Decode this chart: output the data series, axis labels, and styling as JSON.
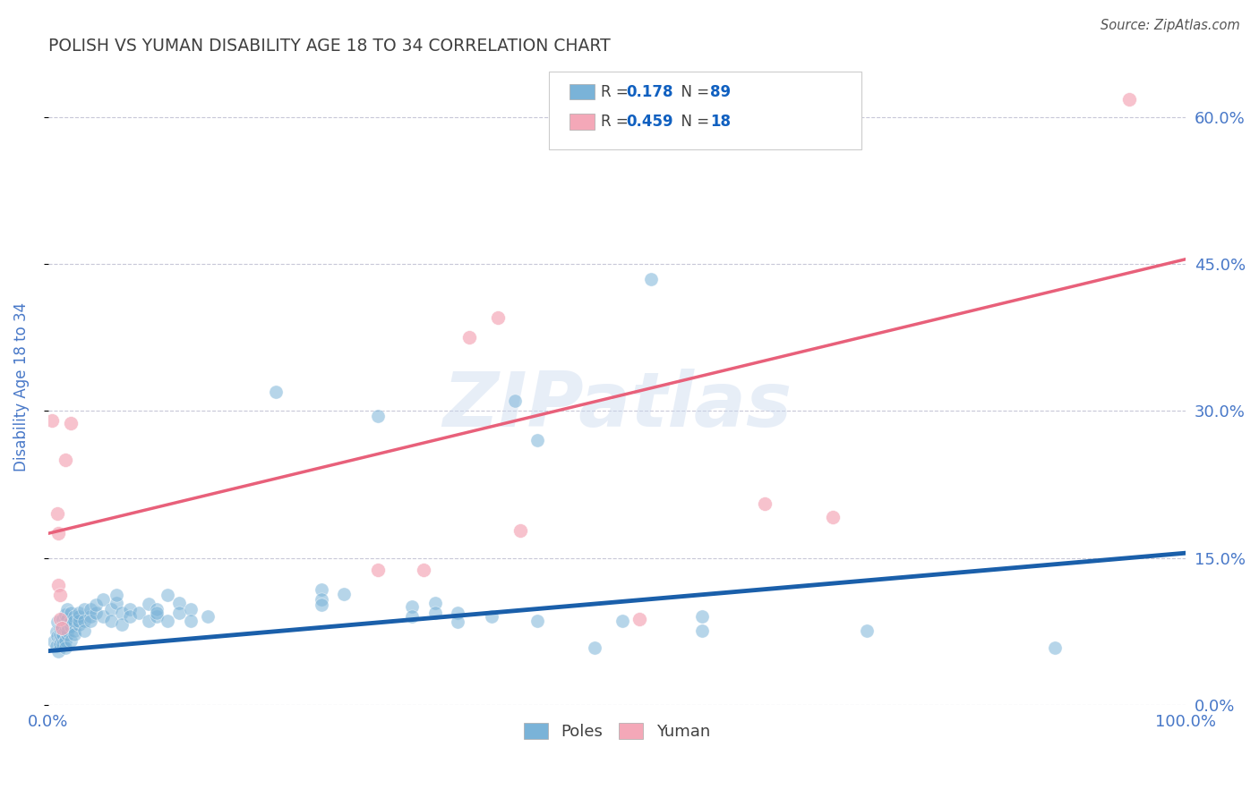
{
  "title": "POLISH VS YUMAN DISABILITY AGE 18 TO 34 CORRELATION CHART",
  "source": "Source: ZipAtlas.com",
  "ylabel": "Disability Age 18 to 34",
  "xlim": [
    0.0,
    1.0
  ],
  "ylim": [
    0.0,
    0.65
  ],
  "yticks": [
    0.0,
    0.15,
    0.3,
    0.45,
    0.6
  ],
  "ytick_labels": [
    "0.0%",
    "15.0%",
    "30.0%",
    "45.0%",
    "60.0%"
  ],
  "xtick_labels": [
    "0.0%",
    "100.0%"
  ],
  "blue_line": {
    "x": [
      0.0,
      1.0
    ],
    "y": [
      0.055,
      0.155
    ]
  },
  "pink_line": {
    "x": [
      0.0,
      1.0
    ],
    "y": [
      0.175,
      0.455
    ]
  },
  "blue_scatter": [
    [
      0.005,
      0.065
    ],
    [
      0.007,
      0.06
    ],
    [
      0.007,
      0.075
    ],
    [
      0.008,
      0.07
    ],
    [
      0.008,
      0.085
    ],
    [
      0.009,
      0.055
    ],
    [
      0.01,
      0.068
    ],
    [
      0.01,
      0.072
    ],
    [
      0.01,
      0.062
    ],
    [
      0.01,
      0.078
    ],
    [
      0.012,
      0.08
    ],
    [
      0.012,
      0.068
    ],
    [
      0.013,
      0.072
    ],
    [
      0.013,
      0.062
    ],
    [
      0.013,
      0.088
    ],
    [
      0.015,
      0.076
    ],
    [
      0.015,
      0.086
    ],
    [
      0.015,
      0.066
    ],
    [
      0.015,
      0.058
    ],
    [
      0.015,
      0.092
    ],
    [
      0.017,
      0.072
    ],
    [
      0.017,
      0.082
    ],
    [
      0.017,
      0.088
    ],
    [
      0.017,
      0.098
    ],
    [
      0.017,
      0.076
    ],
    [
      0.02,
      0.08
    ],
    [
      0.02,
      0.086
    ],
    [
      0.02,
      0.094
    ],
    [
      0.02,
      0.066
    ],
    [
      0.023,
      0.09
    ],
    [
      0.023,
      0.076
    ],
    [
      0.023,
      0.086
    ],
    [
      0.023,
      0.072
    ],
    [
      0.027,
      0.082
    ],
    [
      0.027,
      0.09
    ],
    [
      0.027,
      0.086
    ],
    [
      0.027,
      0.094
    ],
    [
      0.032,
      0.098
    ],
    [
      0.032,
      0.086
    ],
    [
      0.032,
      0.076
    ],
    [
      0.037,
      0.09
    ],
    [
      0.037,
      0.098
    ],
    [
      0.037,
      0.086
    ],
    [
      0.042,
      0.094
    ],
    [
      0.042,
      0.102
    ],
    [
      0.048,
      0.108
    ],
    [
      0.048,
      0.09
    ],
    [
      0.055,
      0.098
    ],
    [
      0.055,
      0.086
    ],
    [
      0.06,
      0.104
    ],
    [
      0.06,
      0.112
    ],
    [
      0.065,
      0.094
    ],
    [
      0.065,
      0.082
    ],
    [
      0.072,
      0.098
    ],
    [
      0.072,
      0.09
    ],
    [
      0.08,
      0.094
    ],
    [
      0.088,
      0.103
    ],
    [
      0.088,
      0.086
    ],
    [
      0.095,
      0.09
    ],
    [
      0.095,
      0.098
    ],
    [
      0.095,
      0.094
    ],
    [
      0.105,
      0.112
    ],
    [
      0.105,
      0.086
    ],
    [
      0.115,
      0.104
    ],
    [
      0.115,
      0.094
    ],
    [
      0.125,
      0.098
    ],
    [
      0.125,
      0.086
    ],
    [
      0.14,
      0.09
    ],
    [
      0.2,
      0.32
    ],
    [
      0.24,
      0.118
    ],
    [
      0.24,
      0.108
    ],
    [
      0.24,
      0.102
    ],
    [
      0.26,
      0.113
    ],
    [
      0.29,
      0.295
    ],
    [
      0.32,
      0.1
    ],
    [
      0.32,
      0.09
    ],
    [
      0.34,
      0.104
    ],
    [
      0.34,
      0.094
    ],
    [
      0.36,
      0.094
    ],
    [
      0.36,
      0.085
    ],
    [
      0.39,
      0.09
    ],
    [
      0.41,
      0.31
    ],
    [
      0.43,
      0.27
    ],
    [
      0.43,
      0.086
    ],
    [
      0.48,
      0.058
    ],
    [
      0.505,
      0.086
    ],
    [
      0.53,
      0.435
    ],
    [
      0.575,
      0.09
    ],
    [
      0.575,
      0.076
    ],
    [
      0.72,
      0.076
    ],
    [
      0.885,
      0.058
    ]
  ],
  "pink_scatter": [
    [
      0.003,
      0.29
    ],
    [
      0.008,
      0.195
    ],
    [
      0.009,
      0.175
    ],
    [
      0.009,
      0.122
    ],
    [
      0.01,
      0.112
    ],
    [
      0.01,
      0.088
    ],
    [
      0.012,
      0.078
    ],
    [
      0.015,
      0.25
    ],
    [
      0.02,
      0.288
    ],
    [
      0.29,
      0.138
    ],
    [
      0.33,
      0.138
    ],
    [
      0.37,
      0.375
    ],
    [
      0.395,
      0.395
    ],
    [
      0.415,
      0.178
    ],
    [
      0.52,
      0.088
    ],
    [
      0.63,
      0.205
    ],
    [
      0.69,
      0.192
    ],
    [
      0.95,
      0.618
    ]
  ],
  "watermark": "ZIPatlas",
  "background_color": "#ffffff",
  "blue_color": "#7ab3d8",
  "pink_color": "#f4a8b8",
  "blue_line_color": "#1a5faa",
  "pink_line_color": "#e8607a",
  "grid_color": "#c8c8d8",
  "title_color": "#404040",
  "axis_label_color": "#4878c8",
  "tick_color": "#4878c8",
  "source_color": "#555555",
  "legend_r_color": "#1060c0",
  "legend_n_color": "#1060c0"
}
